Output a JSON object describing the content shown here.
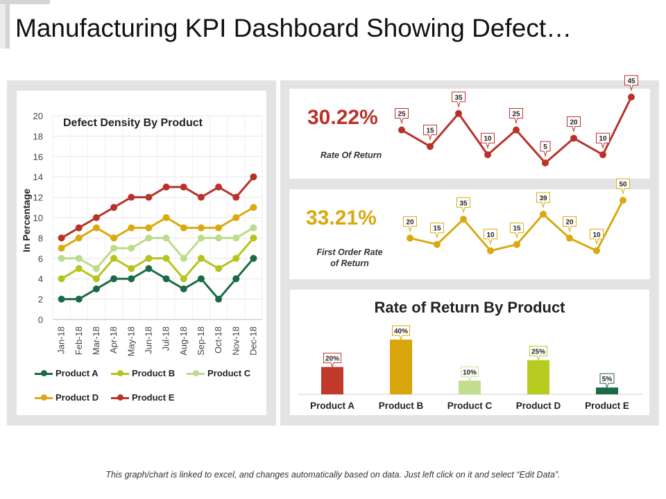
{
  "page": {
    "title": "Manufacturing KPI Dashboard Showing Defect…",
    "footer": "This graph/chart is linked to excel, and changes automatically based on data. Just left click on it and select “Edit Data”."
  },
  "colors": {
    "product_a": "#1a6b45",
    "product_b": "#b5c41a",
    "product_c": "#bcdb8c",
    "product_d": "#d9a90f",
    "product_e": "#b8322a",
    "return_line": "#b8322a",
    "first_order_line": "#d9a90f",
    "bar_a": "#c0392b",
    "bar_b": "#d9a50c",
    "bar_c": "#c2de8e",
    "bar_d": "#b7cc1e",
    "bar_e": "#1a6b45",
    "panel_bg": "#e3e3e3"
  },
  "kpis": {
    "rate_of_return": {
      "value": "30.22%",
      "label": "Rate Of Return"
    },
    "first_order": {
      "value": "33.21%",
      "label_line1": "First Order Rate",
      "label_line2": "of Return"
    }
  },
  "chart_data": [
    {
      "type": "line",
      "title": "Defect Density By Product",
      "xlabel": "",
      "ylabel": "In Percentage",
      "ylim": [
        0,
        20
      ],
      "yticks": [
        "0",
        "2",
        "4",
        "6",
        "8",
        "10",
        "12",
        "14",
        "16",
        "18",
        "20"
      ],
      "categories": [
        "Jan-18",
        "Feb-18",
        "Mar-18",
        "Apr-18",
        "May-18",
        "Jun-18",
        "Jul-18",
        "Aug-18",
        "Sep-18",
        "Oct-18",
        "Nov-18",
        "Dec-18"
      ],
      "grid": true,
      "legend": "bottom",
      "series": [
        {
          "name": "Product A",
          "values": [
            2,
            2,
            3,
            4,
            4,
            5,
            4,
            3,
            4,
            2,
            4,
            6
          ]
        },
        {
          "name": "Product B",
          "values": [
            4,
            5,
            4,
            6,
            5,
            6,
            6,
            4,
            6,
            5,
            6,
            8
          ]
        },
        {
          "name": "Product C",
          "values": [
            6,
            6,
            5,
            7,
            7,
            8,
            8,
            6,
            8,
            8,
            8,
            9
          ]
        },
        {
          "name": "Product D",
          "values": [
            7,
            8,
            9,
            8,
            9,
            9,
            10,
            9,
            9,
            9,
            10,
            11
          ]
        },
        {
          "name": "Product E",
          "values": [
            8,
            9,
            10,
            11,
            12,
            12,
            13,
            13,
            12,
            13,
            12,
            14
          ]
        }
      ]
    },
    {
      "type": "line",
      "title": "",
      "series": [
        {
          "values": [
            25,
            15,
            35,
            10,
            25,
            5,
            20,
            10,
            45
          ],
          "labels": [
            "25",
            "15",
            "35",
            "10",
            "25",
            "5",
            "20",
            "10",
            "45"
          ]
        }
      ],
      "ylim": [
        0,
        45
      ]
    },
    {
      "type": "line",
      "title": "",
      "series": [
        {
          "values": [
            20,
            15,
            35,
            10,
            15,
            39,
            20,
            10,
            50
          ],
          "labels": [
            "20",
            "15",
            "35",
            "10",
            "15",
            "39",
            "20",
            "10",
            "50"
          ]
        }
      ],
      "ylim": [
        0,
        50
      ]
    },
    {
      "type": "bar",
      "title": "Rate of Return By Product",
      "categories": [
        "Product A",
        "Product B",
        "Product C",
        "Product D",
        "Product E"
      ],
      "values": [
        20,
        40,
        10,
        25,
        5
      ],
      "labels": [
        "20%",
        "40%",
        "10%",
        "25%",
        "5%"
      ],
      "ylim": [
        0,
        40
      ]
    }
  ]
}
